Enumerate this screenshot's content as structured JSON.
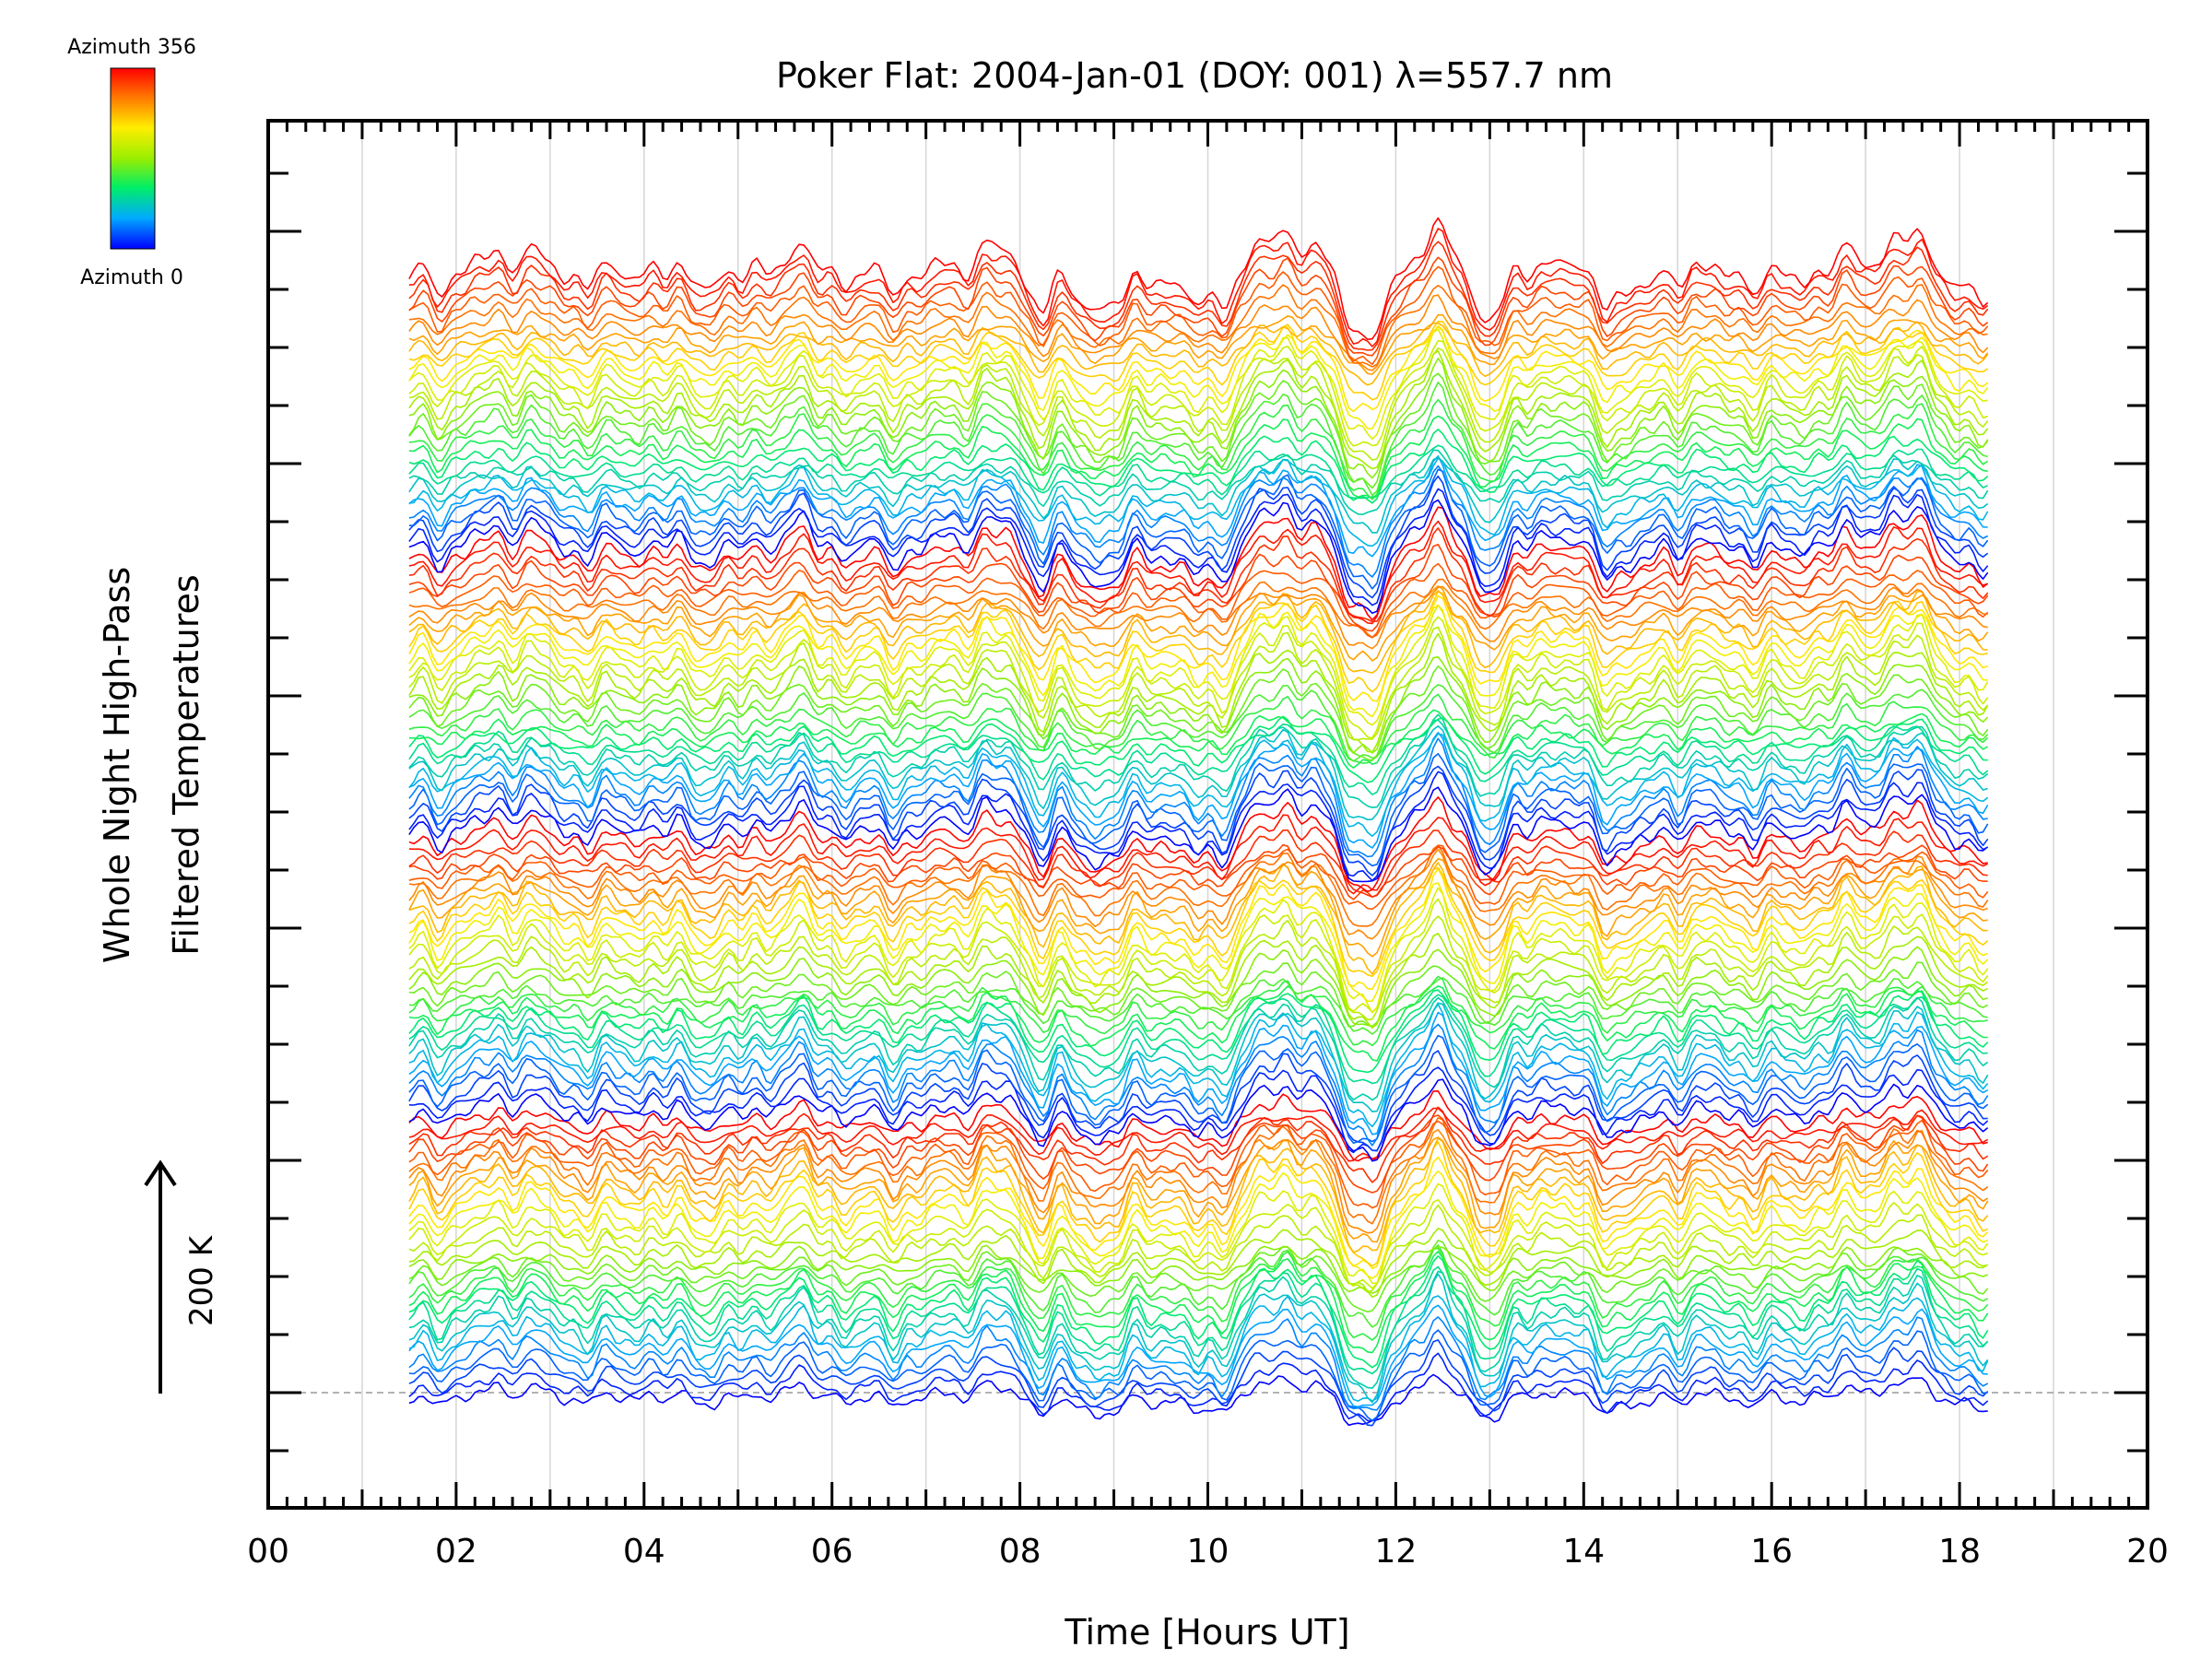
{
  "chart_data": {
    "type": "line",
    "title": "Poker Flat: 2004-Jan-01 (DOY: 001) λ=557.7 nm",
    "xlabel": "Time [Hours UT]",
    "ylabel_line1": "Whole Night High-Pass",
    "ylabel_line2": "Filtered Temperatures",
    "scale_label": "200 K",
    "xlim": [
      0,
      20
    ],
    "x_tick_labels": [
      "00",
      "02",
      "04",
      "06",
      "08",
      "10",
      "12",
      "14",
      "16",
      "18",
      "20"
    ],
    "grid": "vertical",
    "n_traces": 128,
    "time_range": [
      1.5,
      18.3
    ],
    "colorbar": {
      "top_label": "Azimuth 356",
      "bottom_label": "Azimuth 0",
      "colors": [
        "#0000ff",
        "#00aaff",
        "#00ee66",
        "#99ee00",
        "#ffee00",
        "#ff7700",
        "#ff0000"
      ]
    }
  }
}
